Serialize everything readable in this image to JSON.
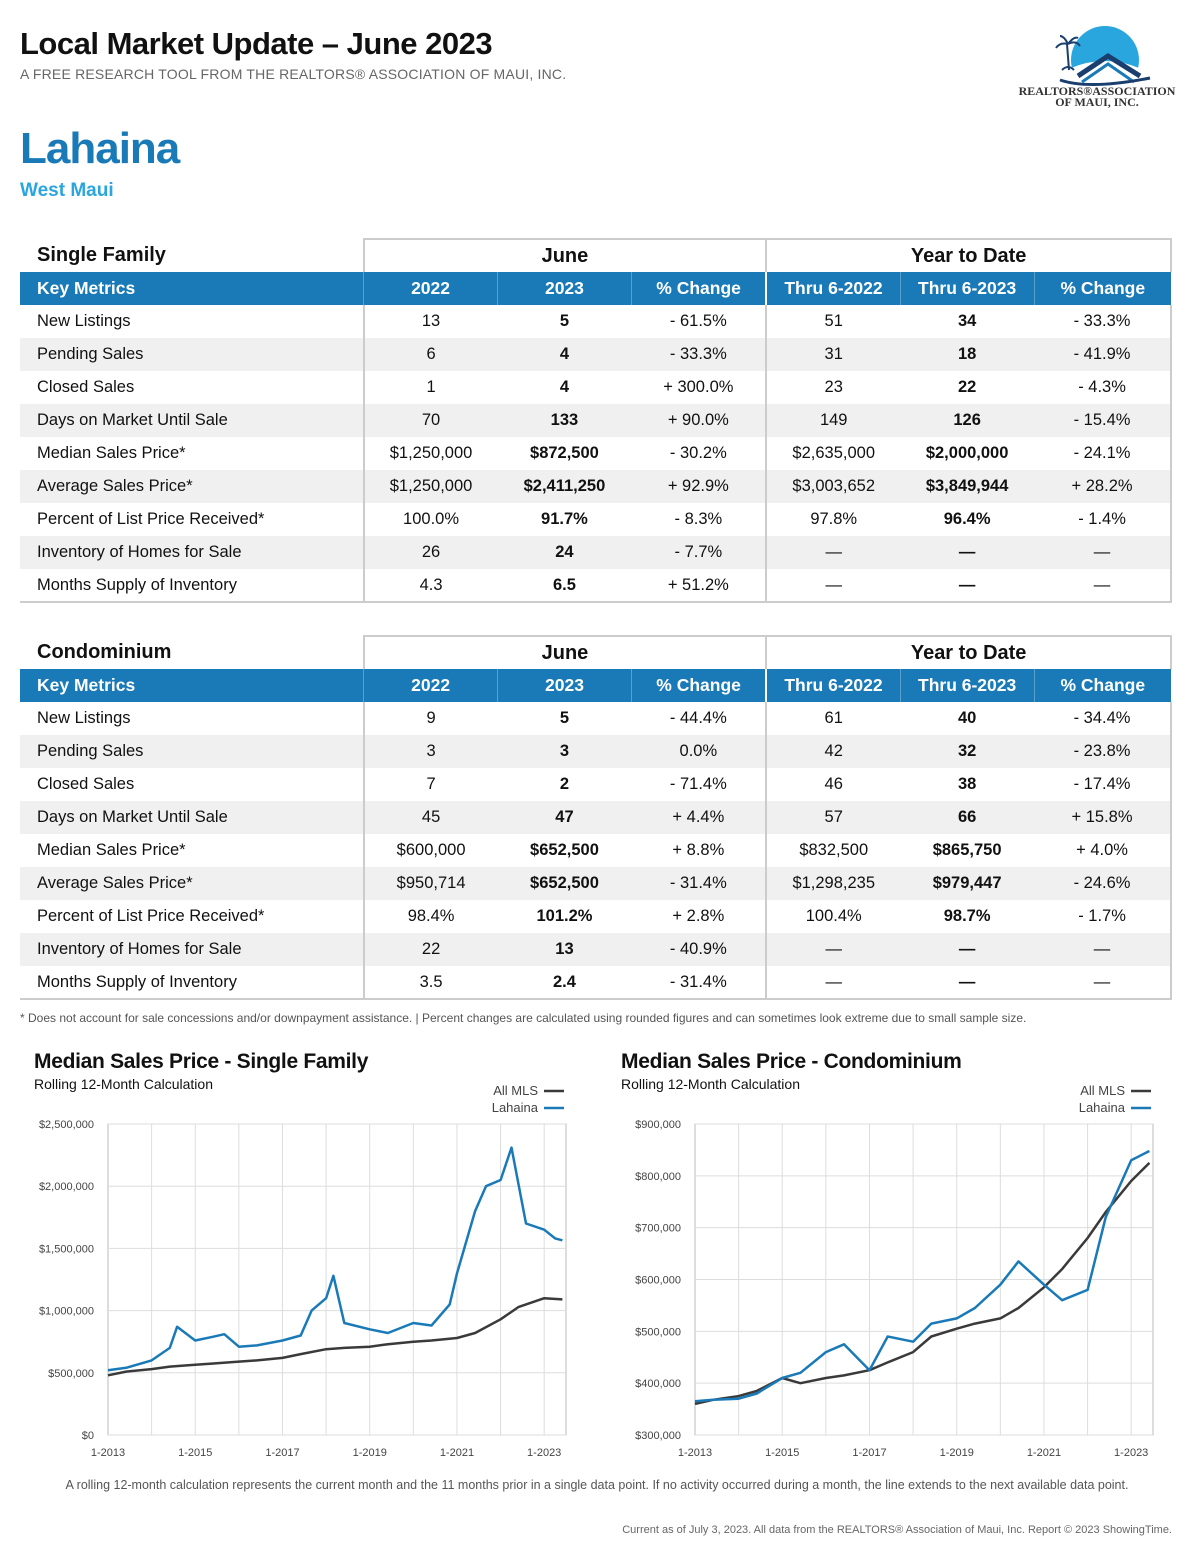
{
  "header": {
    "title": "Local Market Update – June 2023",
    "subtitle": "A FREE RESEARCH TOOL FROM THE REALTORS® ASSOCIATION OF MAUI, INC.",
    "logo_text_1": "REALTORS®ASSOCIATION",
    "logo_text_2": "OF MAUI, INC.",
    "area": "Lahaina",
    "region": "West Maui"
  },
  "colors": {
    "accent": "#1a7ab8",
    "region": "#2aa6df",
    "lahaina": "#1a7ab8",
    "all_mls": "#3a3a3a"
  },
  "table_headers": {
    "june": "June",
    "ytd": "Year to Date",
    "key_metrics": "Key Metrics",
    "y2022": "2022",
    "y2023": "2023",
    "pct": "% Change",
    "thru2022": "Thru 6-2022",
    "thru2023": "Thru 6-2023"
  },
  "single_family": {
    "label": "Single Family",
    "rows": [
      {
        "metric": "New Listings",
        "v2022": "13",
        "v2023": "5",
        "chg": "- 61.5%",
        "ytd2022": "51",
        "ytd2023": "34",
        "ytdchg": "- 33.3%"
      },
      {
        "metric": "Pending Sales",
        "v2022": "6",
        "v2023": "4",
        "chg": "- 33.3%",
        "ytd2022": "31",
        "ytd2023": "18",
        "ytdchg": "- 41.9%"
      },
      {
        "metric": "Closed Sales",
        "v2022": "1",
        "v2023": "4",
        "chg": "+ 300.0%",
        "ytd2022": "23",
        "ytd2023": "22",
        "ytdchg": "- 4.3%"
      },
      {
        "metric": "Days on Market Until Sale",
        "v2022": "70",
        "v2023": "133",
        "chg": "+ 90.0%",
        "ytd2022": "149",
        "ytd2023": "126",
        "ytdchg": "- 15.4%"
      },
      {
        "metric": "Median Sales Price*",
        "v2022": "$1,250,000",
        "v2023": "$872,500",
        "chg": "- 30.2%",
        "ytd2022": "$2,635,000",
        "ytd2023": "$2,000,000",
        "ytdchg": "- 24.1%"
      },
      {
        "metric": "Average Sales Price*",
        "v2022": "$1,250,000",
        "v2023": "$2,411,250",
        "chg": "+ 92.9%",
        "ytd2022": "$3,003,652",
        "ytd2023": "$3,849,944",
        "ytdchg": "+ 28.2%"
      },
      {
        "metric": "Percent of List Price Received*",
        "v2022": "100.0%",
        "v2023": "91.7%",
        "chg": "- 8.3%",
        "ytd2022": "97.8%",
        "ytd2023": "96.4%",
        "ytdchg": "- 1.4%"
      },
      {
        "metric": "Inventory of Homes for Sale",
        "v2022": "26",
        "v2023": "24",
        "chg": "- 7.7%",
        "ytd2022": "—",
        "ytd2023": "—",
        "ytdchg": "—"
      },
      {
        "metric": "Months Supply of Inventory",
        "v2022": "4.3",
        "v2023": "6.5",
        "chg": "+ 51.2%",
        "ytd2022": "—",
        "ytd2023": "—",
        "ytdchg": "—"
      }
    ]
  },
  "condominium": {
    "label": "Condominium",
    "rows": [
      {
        "metric": "New Listings",
        "v2022": "9",
        "v2023": "5",
        "chg": "- 44.4%",
        "ytd2022": "61",
        "ytd2023": "40",
        "ytdchg": "- 34.4%"
      },
      {
        "metric": "Pending Sales",
        "v2022": "3",
        "v2023": "3",
        "chg": "0.0%",
        "ytd2022": "42",
        "ytd2023": "32",
        "ytdchg": "- 23.8%"
      },
      {
        "metric": "Closed Sales",
        "v2022": "7",
        "v2023": "2",
        "chg": "- 71.4%",
        "ytd2022": "46",
        "ytd2023": "38",
        "ytdchg": "- 17.4%"
      },
      {
        "metric": "Days on Market Until Sale",
        "v2022": "45",
        "v2023": "47",
        "chg": "+ 4.4%",
        "ytd2022": "57",
        "ytd2023": "66",
        "ytdchg": "+ 15.8%"
      },
      {
        "metric": "Median Sales Price*",
        "v2022": "$600,000",
        "v2023": "$652,500",
        "chg": "+ 8.8%",
        "ytd2022": "$832,500",
        "ytd2023": "$865,750",
        "ytdchg": "+ 4.0%"
      },
      {
        "metric": "Average Sales Price*",
        "v2022": "$950,714",
        "v2023": "$652,500",
        "chg": "- 31.4%",
        "ytd2022": "$1,298,235",
        "ytd2023": "$979,447",
        "ytdchg": "- 24.6%"
      },
      {
        "metric": "Percent of List Price Received*",
        "v2022": "98.4%",
        "v2023": "101.2%",
        "chg": "+ 2.8%",
        "ytd2022": "100.4%",
        "ytd2023": "98.7%",
        "ytdchg": "- 1.7%"
      },
      {
        "metric": "Inventory of Homes for Sale",
        "v2022": "22",
        "v2023": "13",
        "chg": "- 40.9%",
        "ytd2022": "—",
        "ytd2023": "—",
        "ytdchg": "—"
      },
      {
        "metric": "Months Supply of Inventory",
        "v2022": "3.5",
        "v2023": "2.4",
        "chg": "- 31.4%",
        "ytd2022": "—",
        "ytd2023": "—",
        "ytdchg": "—"
      }
    ]
  },
  "footnote": "* Does not account for sale concessions and/or downpayment assistance. | Percent changes are calculated using rounded figures and can sometimes look extreme due to small sample size.",
  "chart_data": [
    {
      "type": "line",
      "title": "Median Sales Price - Single Family",
      "subtitle": "Rolling 12-Month Calculation",
      "x_ticks": [
        "1-2013",
        "1-2015",
        "1-2017",
        "1-2019",
        "1-2021",
        "1-2023"
      ],
      "y_ticks": [
        "$0",
        "$500,000",
        "$1,000,000",
        "$1,500,000",
        "$2,000,000",
        "$2,500,000"
      ],
      "ylim": [
        0,
        2500000
      ],
      "legend_position": "top-right",
      "series": [
        {
          "name": "All MLS",
          "color": "#3a3a3a",
          "points": [
            [
              "2013-01",
              480000
            ],
            [
              "2013-06",
              510000
            ],
            [
              "2014-01",
              530000
            ],
            [
              "2014-06",
              550000
            ],
            [
              "2015-01",
              565000
            ],
            [
              "2015-06",
              575000
            ],
            [
              "2016-01",
              590000
            ],
            [
              "2016-06",
              600000
            ],
            [
              "2017-01",
              620000
            ],
            [
              "2017-06",
              650000
            ],
            [
              "2018-01",
              690000
            ],
            [
              "2018-06",
              700000
            ],
            [
              "2019-01",
              710000
            ],
            [
              "2019-06",
              730000
            ],
            [
              "2020-01",
              750000
            ],
            [
              "2020-06",
              760000
            ],
            [
              "2021-01",
              780000
            ],
            [
              "2021-06",
              820000
            ],
            [
              "2022-01",
              930000
            ],
            [
              "2022-06",
              1030000
            ],
            [
              "2023-01",
              1100000
            ],
            [
              "2023-06",
              1090000
            ]
          ]
        },
        {
          "name": "Lahaina",
          "color": "#1a7ab8",
          "points": [
            [
              "2013-01",
              520000
            ],
            [
              "2013-06",
              540000
            ],
            [
              "2014-01",
              600000
            ],
            [
              "2014-06",
              700000
            ],
            [
              "2014-08",
              870000
            ],
            [
              "2015-01",
              760000
            ],
            [
              "2015-06",
              790000
            ],
            [
              "2015-09",
              810000
            ],
            [
              "2016-01",
              710000
            ],
            [
              "2016-06",
              720000
            ],
            [
              "2017-01",
              760000
            ],
            [
              "2017-06",
              800000
            ],
            [
              "2017-09",
              1000000
            ],
            [
              "2018-01",
              1100000
            ],
            [
              "2018-03",
              1280000
            ],
            [
              "2018-06",
              900000
            ],
            [
              "2019-01",
              850000
            ],
            [
              "2019-06",
              820000
            ],
            [
              "2020-01",
              900000
            ],
            [
              "2020-06",
              880000
            ],
            [
              "2020-11",
              1050000
            ],
            [
              "2021-01",
              1300000
            ],
            [
              "2021-06",
              1800000
            ],
            [
              "2021-09",
              2000000
            ],
            [
              "2022-01",
              2050000
            ],
            [
              "2022-04",
              2310000
            ],
            [
              "2022-08",
              1700000
            ],
            [
              "2023-01",
              1650000
            ],
            [
              "2023-04",
              1580000
            ],
            [
              "2023-06",
              1565000
            ]
          ]
        }
      ]
    },
    {
      "type": "line",
      "title": "Median Sales Price - Condominium",
      "subtitle": "Rolling 12-Month Calculation",
      "x_ticks": [
        "1-2013",
        "1-2015",
        "1-2017",
        "1-2019",
        "1-2021",
        "1-2023"
      ],
      "y_ticks": [
        "$300,000",
        "$400,000",
        "$500,000",
        "$600,000",
        "$700,000",
        "$800,000",
        "$900,000"
      ],
      "ylim": [
        300000,
        900000
      ],
      "legend_position": "top-right",
      "series": [
        {
          "name": "All MLS",
          "color": "#3a3a3a",
          "points": [
            [
              "2013-01",
              360000
            ],
            [
              "2013-06",
              368000
            ],
            [
              "2014-01",
              375000
            ],
            [
              "2014-06",
              385000
            ],
            [
              "2015-01",
              410000
            ],
            [
              "2015-06",
              400000
            ],
            [
              "2016-01",
              410000
            ],
            [
              "2016-06",
              415000
            ],
            [
              "2017-01",
              425000
            ],
            [
              "2017-06",
              440000
            ],
            [
              "2018-01",
              460000
            ],
            [
              "2018-06",
              490000
            ],
            [
              "2019-01",
              505000
            ],
            [
              "2019-06",
              515000
            ],
            [
              "2020-01",
              525000
            ],
            [
              "2020-06",
              545000
            ],
            [
              "2021-01",
              585000
            ],
            [
              "2021-06",
              620000
            ],
            [
              "2022-01",
              680000
            ],
            [
              "2022-06",
              730000
            ],
            [
              "2023-01",
              790000
            ],
            [
              "2023-06",
              825000
            ]
          ]
        },
        {
          "name": "Lahaina",
          "color": "#1a7ab8",
          "points": [
            [
              "2013-01",
              365000
            ],
            [
              "2013-06",
              368000
            ],
            [
              "2014-01",
              370000
            ],
            [
              "2014-06",
              380000
            ],
            [
              "2015-01",
              410000
            ],
            [
              "2015-06",
              420000
            ],
            [
              "2016-01",
              460000
            ],
            [
              "2016-06",
              475000
            ],
            [
              "2017-01",
              425000
            ],
            [
              "2017-06",
              490000
            ],
            [
              "2018-01",
              480000
            ],
            [
              "2018-06",
              515000
            ],
            [
              "2019-01",
              525000
            ],
            [
              "2019-06",
              545000
            ],
            [
              "2020-01",
              590000
            ],
            [
              "2020-06",
              635000
            ],
            [
              "2021-01",
              590000
            ],
            [
              "2021-06",
              560000
            ],
            [
              "2022-01",
              580000
            ],
            [
              "2022-06",
              720000
            ],
            [
              "2023-01",
              830000
            ],
            [
              "2023-06",
              848000
            ]
          ]
        }
      ]
    }
  ],
  "bottom_note": "A rolling 12-month calculation represents the current month and the 11 months prior in a single data point. If no activity occurred during a month, the line extends to the next available data point.",
  "credit": "Current as of July 3, 2023. All data from the REALTORS® Association of Maui, Inc. Report © 2023 ShowingTime."
}
